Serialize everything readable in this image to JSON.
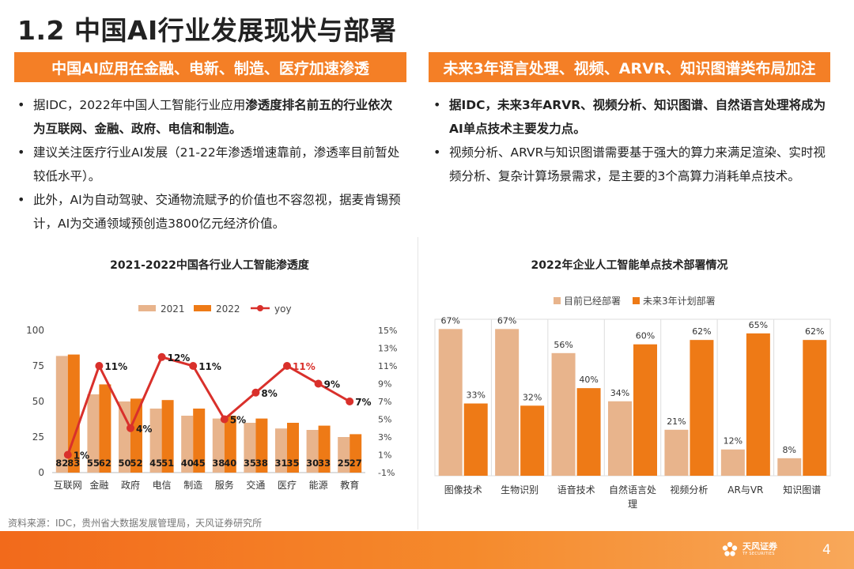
{
  "page": {
    "title": "1.2 中国AI行业发展现状与部署",
    "left_header": "中国AI应用在金融、电新、制造、医疗加速渗透",
    "right_header": "未来3年语言处理、视频、ARVR、知识图谱类布局加注",
    "left_bullets": [
      {
        "pre": "据IDC，2022年中国人工智能行业应用",
        "bold": "渗透度排名前五的行业依次为互联网、金融、政府、电信和制造。",
        "post": ""
      },
      {
        "pre": "建议关注医疗行业AI发展（21-22年渗透增速靠前，渗透率目前暂处较低水平）。",
        "bold": "",
        "post": ""
      },
      {
        "pre": "此外，AI为自动驾驶、交通物流赋予的价值也不容忽视，据麦肯锡预计，AI为交通领域预创造3800亿元经济价值。",
        "bold": "",
        "post": ""
      }
    ],
    "right_bullets": [
      {
        "pre": "",
        "bold": "据IDC，未来3年ARVR、视频分析、知识图谱、自然语言处理将成为AI单点技术主要发力点。",
        "post": ""
      },
      {
        "pre": "视频分析、ARVR与知识图谱需要基于强大的算力来满足渲染、实时视频分析、复杂计算场景需求，是主要的3个高算力消耗单点技术。",
        "bold": "",
        "post": ""
      }
    ],
    "source": "资料来源：IDC，贵州省大数据发展管理局，天风证券研究所",
    "logo_text": "天风证券",
    "logo_sub": "TF SECURITIES",
    "page_number": "4",
    "colors": {
      "accent": "#f47f26",
      "bar_light": "#e8b48c",
      "bar_dark": "#ee7a16",
      "line": "#d9302b"
    }
  },
  "chart_data": [
    {
      "type": "bar",
      "title": "2021-2022中国各行业人工智能渗透度",
      "categories": [
        "互联网",
        "金融",
        "政府",
        "电信",
        "制造",
        "服务",
        "交通",
        "医疗",
        "能源",
        "教育"
      ],
      "series": [
        {
          "name": "2021",
          "values": [
            82,
            55,
            50,
            45,
            40,
            38,
            35,
            31,
            30,
            25
          ]
        },
        {
          "name": "2022",
          "values": [
            83,
            62,
            52,
            51,
            45,
            40,
            38,
            35,
            33,
            27
          ]
        }
      ],
      "line_series": {
        "name": "yoy",
        "values": [
          1,
          11,
          4,
          12,
          11,
          5,
          8,
          11,
          9,
          7
        ],
        "labels": [
          "1%",
          "11%",
          "4%",
          "12%",
          "11%",
          "5%",
          "8%",
          "11%",
          "9%",
          "7%"
        ]
      },
      "yticks": [
        "0",
        "25",
        "50",
        "75",
        "100"
      ],
      "y2ticks": [
        "-1%",
        "1%",
        "3%",
        "5%",
        "7%",
        "9%",
        "11%",
        "13%",
        "15%"
      ],
      "ylim": [
        0,
        100
      ],
      "y2lim": [
        -1,
        15
      ],
      "highlight_index": 7
    },
    {
      "type": "bar",
      "title": "2022年企业人工智能单点技术部署情况",
      "categories": [
        "图像技术",
        "生物识别",
        "语音技术",
        "自然语言处理",
        "视频分析",
        "AR与VR",
        "知识图谱"
      ],
      "series": [
        {
          "name": "目前已经部署",
          "values": [
            67,
            67,
            56,
            34,
            21,
            12,
            8
          ]
        },
        {
          "name": "未来3年计划部署",
          "values": [
            33,
            32,
            40,
            60,
            62,
            65,
            62
          ]
        }
      ],
      "ylim": [
        0,
        70
      ]
    }
  ]
}
